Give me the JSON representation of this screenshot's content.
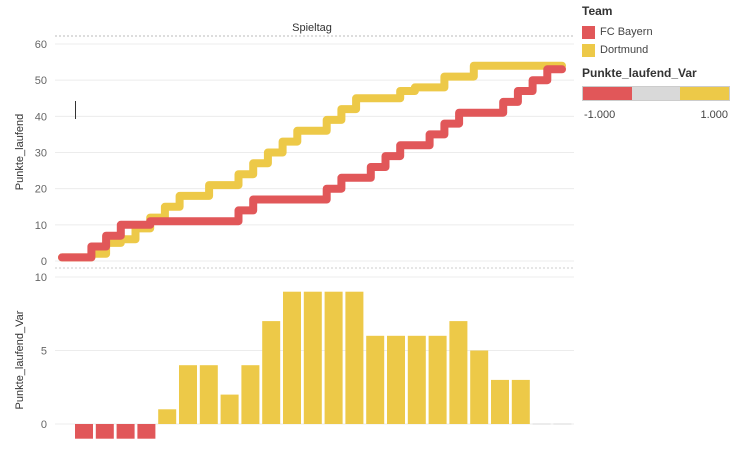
{
  "chart_data": [
    {
      "type": "line",
      "header": "Spieltag",
      "ylabel": "Punkte_laufend",
      "ylim": [
        0,
        60
      ],
      "yticks": [
        0,
        10,
        20,
        30,
        40,
        50,
        60
      ],
      "x": [
        1,
        2,
        3,
        4,
        5,
        6,
        7,
        8,
        9,
        10,
        11,
        12,
        13,
        14,
        15,
        16,
        17,
        18,
        19,
        20,
        21,
        22,
        23,
        24,
        25,
        26,
        27,
        28,
        29,
        30,
        31,
        32,
        33,
        34
      ],
      "series": [
        {
          "name": "FC Bayern",
          "color": "#e15759",
          "values": [
            1,
            1,
            4,
            7,
            10,
            10,
            11,
            11,
            11,
            11,
            11,
            11,
            14,
            17,
            17,
            17,
            17,
            17,
            20,
            23,
            23,
            26,
            29,
            32,
            32,
            35,
            38,
            41,
            41,
            41,
            44,
            47,
            50,
            53
          ]
        },
        {
          "name": "Dortmund",
          "color": "#edc948",
          "values": [
            1,
            1,
            2,
            5,
            6,
            9,
            12,
            15,
            18,
            18,
            21,
            21,
            24,
            27,
            30,
            33,
            36,
            36,
            39,
            42,
            45,
            45,
            45,
            47,
            48,
            48,
            51,
            51,
            54,
            54,
            54,
            54,
            54,
            54
          ]
        }
      ]
    },
    {
      "type": "bar",
      "ylabel": "Punkte_laufend_Var",
      "ylim": [
        -1.2,
        10
      ],
      "yticks": [
        0,
        5,
        10
      ],
      "x": [
        1,
        2,
        3,
        4,
        5,
        6,
        7,
        8,
        9,
        10,
        11,
        12,
        13,
        14,
        15,
        16,
        17,
        18,
        19,
        20,
        21,
        22,
        23,
        24
      ],
      "values": [
        -1,
        -1,
        -1,
        -1,
        1,
        4,
        4,
        2,
        4,
        7,
        9,
        9,
        9,
        9,
        6,
        6,
        6,
        6,
        7,
        5,
        3,
        3,
        0,
        0
      ],
      "colors": {
        "positive": "#edc948",
        "negative": "#e15759",
        "zero": "#d9d9d9"
      }
    }
  ],
  "legend": {
    "title": "Team",
    "items": [
      {
        "label": "FC Bayern",
        "color": "#e15759"
      },
      {
        "label": "Dortmund",
        "color": "#edc948"
      }
    ]
  },
  "scale_legend": {
    "title": "Punkte_laufend_Var",
    "min_label": "-1.000",
    "max_label": "1.000",
    "colors": [
      "#e15759",
      "#d9d9d9",
      "#edc948"
    ]
  }
}
